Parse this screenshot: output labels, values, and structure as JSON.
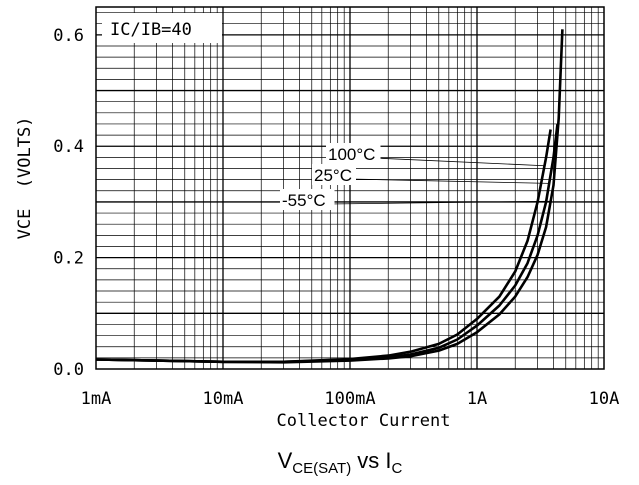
{
  "chart_data": {
    "type": "line",
    "title": "",
    "caption": {
      "main": "V",
      "main_sub": "CE(SAT)",
      "mid": " vs I",
      "end_sub": "C"
    },
    "annotation": "IC/IB=40",
    "xlabel": "Collector Current",
    "ylabel": "VCE  (VOLTS)",
    "x_scale": "log",
    "xlim": [
      0.001,
      10
    ],
    "ylim": [
      0,
      0.65
    ],
    "x_ticks": [
      {
        "value": 0.001,
        "label": "1mA"
      },
      {
        "value": 0.01,
        "label": "10mA"
      },
      {
        "value": 0.1,
        "label": "100mA"
      },
      {
        "value": 1,
        "label": "1A"
      },
      {
        "value": 10,
        "label": "10A"
      }
    ],
    "y_ticks": [
      {
        "value": 0,
        "label": "0.0"
      },
      {
        "value": 0.2,
        "label": "0.2"
      },
      {
        "value": 0.4,
        "label": "0.4"
      },
      {
        "value": 0.6,
        "label": "0.6"
      }
    ],
    "grid": true,
    "series": [
      {
        "name": "100°C",
        "x": [
          0.001,
          0.003,
          0.01,
          0.03,
          0.1,
          0.2,
          0.3,
          0.5,
          0.7,
          1.0,
          1.5,
          2.0,
          2.5,
          3.0,
          3.5,
          3.8
        ],
        "y": [
          0.017,
          0.015,
          0.013,
          0.013,
          0.018,
          0.024,
          0.031,
          0.045,
          0.062,
          0.09,
          0.13,
          0.175,
          0.23,
          0.3,
          0.38,
          0.43
        ]
      },
      {
        "name": "25°C",
        "x": [
          0.001,
          0.003,
          0.01,
          0.03,
          0.1,
          0.2,
          0.3,
          0.5,
          0.7,
          1.0,
          1.5,
          2.0,
          2.5,
          3.0,
          3.5,
          4.0,
          4.3
        ],
        "y": [
          0.017,
          0.015,
          0.013,
          0.013,
          0.016,
          0.021,
          0.026,
          0.038,
          0.053,
          0.078,
          0.114,
          0.15,
          0.19,
          0.24,
          0.3,
          0.38,
          0.44
        ]
      },
      {
        "name": "-55°C",
        "x": [
          0.001,
          0.003,
          0.01,
          0.03,
          0.1,
          0.2,
          0.3,
          0.5,
          0.7,
          1.0,
          1.5,
          2.0,
          2.5,
          3.0,
          3.5,
          4.0,
          4.4,
          4.7
        ],
        "y": [
          0.017,
          0.015,
          0.013,
          0.012,
          0.015,
          0.019,
          0.023,
          0.033,
          0.045,
          0.066,
          0.098,
          0.13,
          0.165,
          0.205,
          0.255,
          0.33,
          0.45,
          0.61
        ]
      }
    ],
    "series_label_targets": [
      {
        "series": "100°C",
        "x": 3.4
      },
      {
        "series": "25°C",
        "x": 3.7
      },
      {
        "series": "-55°C",
        "x": 3.8
      }
    ],
    "colors": {
      "line": "#000000",
      "grid": "#000000",
      "background": "#ffffff"
    }
  }
}
